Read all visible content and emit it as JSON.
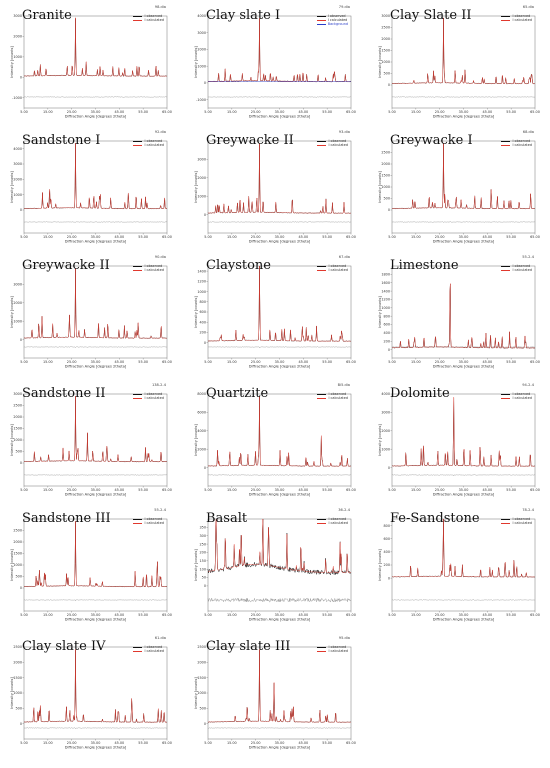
{
  "figure": {
    "description": "Grid of X-ray powder diffraction patterns of rock samples"
  },
  "colors": {
    "observed": "#111111",
    "calculated": "#e0382d",
    "difference": "#777777",
    "background": "#2a3ec9"
  },
  "legend_labels": {
    "observed": "I observed",
    "calculated": "I calculated",
    "background": "Background"
  },
  "axis_labels": {
    "x": "Diffraction Angle [degrees 2theta]",
    "y": "Intensity [counts]"
  },
  "x_ticks": [
    "5.00",
    "10.00",
    "15.00",
    "20.00",
    "25.00",
    "30.00",
    "35.00",
    "40.00",
    "45.00",
    "50.00",
    "55.00",
    "60.00",
    "65.00"
  ],
  "chart_data": [
    {
      "type": "line",
      "title": "Granite",
      "file": "98.dia",
      "peak_x": 26.6,
      "ylim": [
        -1500,
        3000
      ],
      "yticks": [
        "-1000",
        "0",
        "1000",
        "2000",
        "3000"
      ],
      "series": [
        {
          "name": "I observed"
        },
        {
          "name": "I calculated"
        }
      ]
    },
    {
      "type": "line",
      "title": "Clay slate I",
      "file": "79.dia",
      "peak_x": 26.6,
      "ylim": [
        -1500,
        4000
      ],
      "yticks": [
        "-1000",
        "0",
        "1000",
        "2000",
        "3000",
        "4000"
      ],
      "series": [
        {
          "name": "I observed"
        },
        {
          "name": "I calculated"
        },
        {
          "name": "Background"
        }
      ]
    },
    {
      "type": "line",
      "title": "Clay Slate II",
      "file": "65.dia",
      "peak_x": 26.6,
      "ylim": [
        -1000,
        3000
      ],
      "yticks": [
        "0",
        "500",
        "1000",
        "1500",
        "2000",
        "2500",
        "3000"
      ],
      "series": [
        {
          "name": "I observed"
        },
        {
          "name": "I calculated"
        }
      ]
    },
    {
      "type": "line",
      "title": "Sandstone I",
      "file": "92.dia",
      "peak_x": 26.6,
      "ylim": [
        -1500,
        4500
      ],
      "yticks": [
        "0",
        "1000",
        "2000",
        "3000",
        "4000"
      ],
      "series": [
        {
          "name": "I observed"
        },
        {
          "name": "I calculated"
        }
      ]
    },
    {
      "type": "line",
      "title": "Greywacke II",
      "file": "93.dia",
      "peak_x": 26.6,
      "ylim": [
        -1000,
        4000
      ],
      "yticks": [
        "0",
        "1000",
        "2000",
        "3000"
      ],
      "series": [
        {
          "name": "I observed"
        },
        {
          "name": "I calculated"
        }
      ]
    },
    {
      "type": "line",
      "title": "Greywacke I",
      "file": "68.dia",
      "peak_x": 26.6,
      "ylim": [
        -1000,
        3000
      ],
      "yticks": [
        "0",
        "500",
        "1000",
        "1500",
        "2000",
        "2500"
      ],
      "series": [
        {
          "name": "I observed"
        },
        {
          "name": "I calculated"
        }
      ]
    },
    {
      "type": "line",
      "title": "Greywacke II",
      "file": "90.dia",
      "peak_x": 26.6,
      "ylim": [
        -1000,
        4000
      ],
      "yticks": [
        "0",
        "1000",
        "2000",
        "3000"
      ],
      "series": [
        {
          "name": "I observed"
        },
        {
          "name": "I calculated"
        }
      ]
    },
    {
      "type": "line",
      "title": "Claystone",
      "file": "67.dia",
      "peak_x": 26.6,
      "ylim": [
        -300,
        1500
      ],
      "yticks": [
        "0",
        "200",
        "400",
        "600",
        "800",
        "1000",
        "1200",
        "1400"
      ],
      "series": [
        {
          "name": "I observed"
        },
        {
          "name": "I calculated"
        }
      ]
    },
    {
      "type": "line",
      "title": "Limestone",
      "file": "55-2-4",
      "peak_x": 29.4,
      "ylim": [
        -200,
        2000
      ],
      "yticks": [
        "0",
        "200",
        "400",
        "600",
        "800",
        "1000",
        "1200",
        "1400",
        "1600",
        "1800"
      ],
      "series": [
        {
          "name": "I observed"
        },
        {
          "name": "I calculated"
        }
      ]
    },
    {
      "type": "line",
      "title": "Sandstone II",
      "file": "138-2-4",
      "peak_x": 26.6,
      "ylim": [
        -1000,
        3000
      ],
      "yticks": [
        "0",
        "500",
        "1000",
        "1500",
        "2000",
        "2500",
        "3000"
      ],
      "series": [
        {
          "name": "I observed"
        },
        {
          "name": "I calculated"
        }
      ]
    },
    {
      "type": "line",
      "title": "Quartzite",
      "file": "Bi5.dia",
      "peak_x": 26.6,
      "ylim": [
        -2000,
        8000
      ],
      "yticks": [
        "0",
        "2000",
        "4000",
        "6000",
        "8000"
      ],
      "series": [
        {
          "name": "I observed"
        },
        {
          "name": "I calculated"
        }
      ]
    },
    {
      "type": "line",
      "title": "Dolomite",
      "file": "94-2-4",
      "peak_x": 30.9,
      "ylim": [
        -1000,
        4000
      ],
      "yticks": [
        "0",
        "1000",
        "2000",
        "3000",
        "4000"
      ],
      "series": [
        {
          "name": "I observed"
        },
        {
          "name": "I calculated"
        }
      ]
    },
    {
      "type": "line",
      "title": "Sandstone III",
      "file": "55-2-4",
      "peak_x": 26.6,
      "ylim": [
        -1000,
        3000
      ],
      "yticks": [
        "0",
        "500",
        "1000",
        "1500",
        "2000",
        "2500"
      ],
      "series": [
        {
          "name": "I observed"
        },
        {
          "name": "I calculated"
        }
      ]
    },
    {
      "type": "line",
      "title": "Basalt",
      "file": "36-2-4",
      "peak_x": 28.0,
      "ylim": [
        -150,
        400
      ],
      "yticks": [
        "0",
        "50",
        "100",
        "150",
        "200",
        "250",
        "300",
        "350"
      ],
      "series": [
        {
          "name": "I observed"
        },
        {
          "name": "I calculated"
        }
      ]
    },
    {
      "type": "line",
      "title": "Fe-Sandstone",
      "file": "78-2-4",
      "peak_x": 26.6,
      "ylim": [
        -500,
        900
      ],
      "yticks": [
        "0",
        "200",
        "400",
        "600",
        "800"
      ],
      "series": [
        {
          "name": "I observed"
        },
        {
          "name": "I calculated"
        }
      ]
    },
    {
      "type": "line",
      "title": "Clay slate IV",
      "file": "61.dia",
      "peak_x": 26.6,
      "ylim": [
        -500,
        2500
      ],
      "yticks": [
        "0",
        "500",
        "1000",
        "1500",
        "2000",
        "2500"
      ],
      "series": [
        {
          "name": "I observed"
        },
        {
          "name": "I calculated"
        }
      ]
    },
    {
      "type": "line",
      "title": "Clay slate III",
      "file": "95.dia",
      "peak_x": 26.6,
      "ylim": [
        -500,
        2500
      ],
      "yticks": [
        "0",
        "500",
        "1000",
        "1500",
        "2000",
        "2500"
      ],
      "series": [
        {
          "name": "I observed"
        },
        {
          "name": "I calculated"
        }
      ]
    }
  ]
}
